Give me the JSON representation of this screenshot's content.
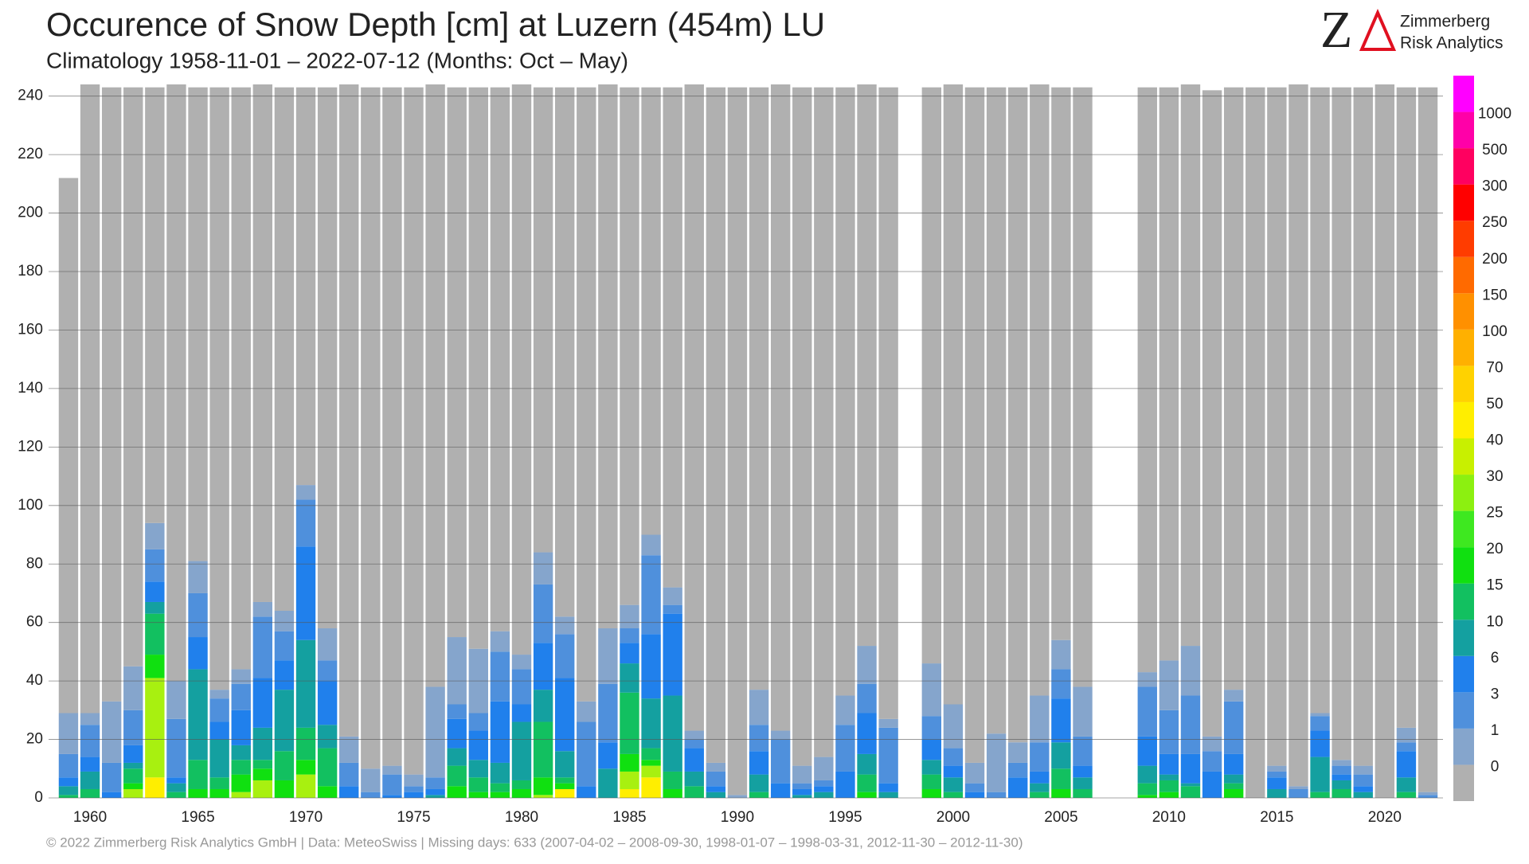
{
  "chart_data": {
    "type": "stacked-bar",
    "title": "Occurence of Snow Depth [cm] at Luzern (454m) LU",
    "subtitle": "Climatology 1958-11-01 – 2022-07-12 (Months: Oct – May)",
    "footer": "©  2022 Zimmerberg Risk Analytics GmbH | Data: MeteoSwiss | Missing days: 633 (2007-04-02 – 2008-09-30, 1998-01-07 – 1998-03-31, 2012-11-30 – 2012-11-30)",
    "logo": {
      "mark": "Z",
      "name": [
        "Zimmerberg",
        "Risk Analytics"
      ]
    },
    "x": [
      1959,
      1960,
      1961,
      1962,
      1963,
      1964,
      1965,
      1966,
      1967,
      1968,
      1969,
      1970,
      1971,
      1972,
      1973,
      1974,
      1975,
      1976,
      1977,
      1978,
      1979,
      1980,
      1981,
      1982,
      1983,
      1984,
      1985,
      1986,
      1987,
      1988,
      1989,
      1990,
      1991,
      1992,
      1993,
      1994,
      1995,
      1996,
      1997,
      1998,
      1999,
      2000,
      2001,
      2002,
      2003,
      2004,
      2005,
      2006,
      2007,
      2008,
      2009,
      2010,
      2011,
      2012,
      2013,
      2014,
      2015,
      2016,
      2017,
      2018,
      2019,
      2020,
      2021,
      2022
    ],
    "xlim": [
      1958.3,
      2022.7
    ],
    "xticks": [
      1960,
      1965,
      1970,
      1975,
      1980,
      1985,
      1990,
      1995,
      2000,
      2005,
      2010,
      2015,
      2020
    ],
    "ylim": [
      0,
      247
    ],
    "yticks": [
      0,
      20,
      40,
      60,
      80,
      100,
      120,
      140,
      160,
      180,
      200,
      220,
      240
    ],
    "grid": true,
    "series": [
      {
        "color": "#ffee00",
        "values": [
          0,
          0,
          0,
          0,
          7,
          0,
          0,
          0,
          0,
          0,
          0,
          0,
          0,
          0,
          0,
          0,
          0,
          0,
          0,
          0,
          0,
          0,
          0,
          3,
          0,
          0,
          3,
          7,
          0,
          0,
          0,
          0,
          0,
          0,
          0,
          0,
          0,
          0,
          0,
          null,
          0,
          0,
          0,
          0,
          0,
          0,
          0,
          0,
          null,
          null,
          0,
          0,
          0,
          0,
          0,
          0,
          0,
          0,
          0,
          0,
          0,
          0,
          0,
          0
        ]
      },
      {
        "color": "#a8f010",
        "values": [
          0,
          0,
          0,
          3,
          34,
          0,
          0,
          0,
          2,
          6,
          0,
          8,
          0,
          0,
          0,
          0,
          0,
          0,
          0,
          0,
          0,
          0,
          1,
          0,
          0,
          0,
          6,
          4,
          0,
          0,
          0,
          0,
          0,
          0,
          0,
          0,
          0,
          0,
          0,
          null,
          0,
          0,
          0,
          0,
          0,
          0,
          0,
          0,
          null,
          null,
          0,
          0,
          0,
          0,
          0,
          0,
          0,
          0,
          0,
          0,
          0,
          0,
          0,
          0
        ]
      },
      {
        "color": "#10e010",
        "values": [
          0,
          0,
          0,
          2,
          8,
          0,
          3,
          3,
          6,
          4,
          6,
          5,
          4,
          0,
          0,
          0,
          0,
          0,
          4,
          2,
          2,
          3,
          6,
          2,
          0,
          0,
          6,
          2,
          3,
          0,
          0,
          0,
          0,
          0,
          0,
          0,
          0,
          2,
          0,
          null,
          3,
          0,
          0,
          0,
          0,
          0,
          3,
          0,
          null,
          null,
          1,
          2,
          0,
          0,
          3,
          0,
          0,
          0,
          0,
          0,
          0,
          0,
          0,
          0
        ]
      },
      {
        "color": "#12c060",
        "values": [
          1,
          3,
          0,
          5,
          14,
          2,
          10,
          4,
          5,
          3,
          10,
          11,
          13,
          0,
          0,
          0,
          0,
          0,
          7,
          5,
          3,
          3,
          19,
          2,
          0,
          0,
          21,
          4,
          6,
          4,
          0,
          0,
          2,
          0,
          0,
          0,
          0,
          6,
          0,
          null,
          5,
          2,
          0,
          0,
          0,
          2,
          7,
          3,
          null,
          null,
          4,
          4,
          4,
          0,
          2,
          0,
          0,
          0,
          2,
          3,
          0,
          0,
          2,
          0
        ]
      },
      {
        "color": "#14a0a0",
        "values": [
          3,
          6,
          0,
          2,
          4,
          3,
          31,
          13,
          5,
          11,
          21,
          30,
          8,
          0,
          0,
          0,
          0,
          1,
          6,
          6,
          7,
          20,
          11,
          9,
          0,
          10,
          10,
          17,
          26,
          5,
          2,
          0,
          6,
          0,
          1,
          2,
          0,
          7,
          2,
          null,
          5,
          5,
          0,
          0,
          0,
          3,
          9,
          4,
          null,
          null,
          6,
          2,
          1,
          0,
          3,
          0,
          3,
          0,
          12,
          3,
          2,
          0,
          5,
          0
        ]
      },
      {
        "color": "#2080ec",
        "values": [
          3,
          5,
          2,
          6,
          7,
          2,
          11,
          6,
          12,
          17,
          10,
          32,
          15,
          4,
          0,
          1,
          2,
          2,
          10,
          10,
          21,
          6,
          16,
          25,
          4,
          9,
          7,
          22,
          28,
          8,
          2,
          0,
          8,
          5,
          2,
          2,
          9,
          14,
          3,
          null,
          7,
          4,
          2,
          0,
          7,
          4,
          15,
          4,
          null,
          null,
          10,
          7,
          10,
          9,
          7,
          0,
          4,
          0,
          9,
          2,
          2,
          0,
          9,
          0
        ]
      },
      {
        "color": "#4f90dc",
        "values": [
          8,
          11,
          10,
          12,
          11,
          20,
          15,
          8,
          9,
          21,
          10,
          16,
          7,
          8,
          2,
          7,
          2,
          4,
          5,
          6,
          17,
          12,
          20,
          15,
          22,
          20,
          5,
          27,
          3,
          3,
          5,
          0,
          9,
          15,
          2,
          2,
          16,
          10,
          19,
          null,
          8,
          6,
          3,
          2,
          5,
          10,
          10,
          10,
          null,
          null,
          17,
          15,
          20,
          7,
          18,
          0,
          2,
          3,
          5,
          3,
          4,
          0,
          3,
          1
        ]
      },
      {
        "color": "#85a5cc",
        "values": [
          14,
          4,
          21,
          15,
          9,
          13,
          11,
          3,
          5,
          5,
          7,
          5,
          11,
          9,
          8,
          3,
          4,
          31,
          23,
          22,
          7,
          5,
          11,
          6,
          7,
          19,
          8,
          7,
          6,
          3,
          3,
          1,
          12,
          3,
          6,
          8,
          10,
          13,
          3,
          null,
          18,
          15,
          7,
          20,
          7,
          16,
          10,
          17,
          null,
          null,
          5,
          17,
          17,
          5,
          4,
          0,
          2,
          1,
          1,
          2,
          3,
          0,
          5,
          1
        ]
      },
      {
        "color": "#b0b0b0",
        "values": [
          183,
          215,
          210,
          198,
          149,
          204,
          162,
          206,
          199,
          177,
          179,
          136,
          185,
          223,
          233,
          232,
          235,
          206,
          188,
          192,
          186,
          195,
          159,
          181,
          210,
          186,
          177,
          153,
          171,
          221,
          231,
          242,
          206,
          221,
          232,
          229,
          208,
          192,
          216,
          null,
          197,
          212,
          231,
          221,
          224,
          209,
          189,
          205,
          null,
          null,
          200,
          196,
          192,
          221,
          206,
          243,
          232,
          240,
          214,
          230,
          232,
          244,
          219,
          241
        ]
      }
    ],
    "colorbar": {
      "levels": [
        0,
        1,
        3,
        6,
        10,
        15,
        20,
        25,
        30,
        40,
        50,
        70,
        100,
        150,
        200,
        250,
        300,
        500,
        1000
      ],
      "colors": [
        "#b0b0b0",
        "#85a5cc",
        "#4f90dc",
        "#2080ec",
        "#14a0a0",
        "#12c060",
        "#10e010",
        "#3ee820",
        "#8cf010",
        "#c8f000",
        "#ffee00",
        "#ffd200",
        "#ffb000",
        "#ff9000",
        "#ff6a00",
        "#ff3c00",
        "#ff0000",
        "#ff0060",
        "#ff00a8",
        "#ff00ff"
      ]
    }
  }
}
